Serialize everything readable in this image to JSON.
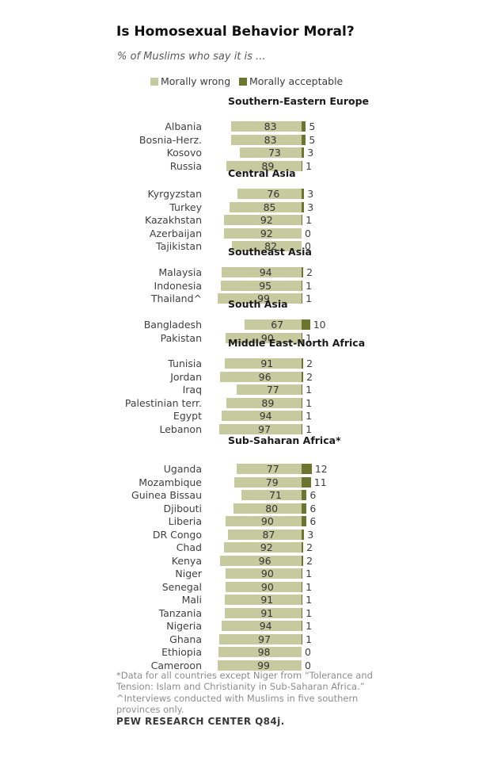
{
  "title": "Is Homosexual Behavior Moral?",
  "subtitle": "% of Muslims who say it is ...",
  "footnotes": [
    "*Data for all countries except Niger from “Tolerance and Tension: Islam and Christianity in Sub-Saharan Africa.”",
    "^Interviews conducted with Muslims in five southern provinces only."
  ],
  "source": "PEW RESEARCH CENTER Q84j.",
  "chart_data": {
    "type": "bar",
    "orientation": "horizontal",
    "stacked": true,
    "unit": "%",
    "xlim": [
      0,
      100
    ],
    "value_labels": "shown",
    "legend_position": "top",
    "legend": [
      {
        "name": "Morally wrong",
        "color": "#c6ca9f"
      },
      {
        "name": "Morally acceptable",
        "color": "#6c7530"
      }
    ],
    "groups": [
      {
        "region": "Southern-Eastern Europe",
        "rows": [
          {
            "country": "Albania",
            "wrong": 83,
            "acceptable": 5
          },
          {
            "country": "Bosnia-Herz.",
            "wrong": 83,
            "acceptable": 5
          },
          {
            "country": "Kosovo",
            "wrong": 73,
            "acceptable": 3
          },
          {
            "country": "Russia",
            "wrong": 89,
            "acceptable": 1
          }
        ]
      },
      {
        "region": "Central Asia",
        "rows": [
          {
            "country": "Kyrgyzstan",
            "wrong": 76,
            "acceptable": 3
          },
          {
            "country": "Turkey",
            "wrong": 85,
            "acceptable": 3
          },
          {
            "country": "Kazakhstan",
            "wrong": 92,
            "acceptable": 1
          },
          {
            "country": "Azerbaijan",
            "wrong": 92,
            "acceptable": 0
          },
          {
            "country": "Tajikistan",
            "wrong": 82,
            "acceptable": 0
          }
        ]
      },
      {
        "region": "Southeast Asia",
        "rows": [
          {
            "country": "Malaysia",
            "wrong": 94,
            "acceptable": 2
          },
          {
            "country": "Indonesia",
            "wrong": 95,
            "acceptable": 1
          },
          {
            "country": "Thailand^",
            "wrong": 99,
            "acceptable": 1
          }
        ]
      },
      {
        "region": "South Asia",
        "rows": [
          {
            "country": "Bangladesh",
            "wrong": 67,
            "acceptable": 10
          },
          {
            "country": "Pakistan",
            "wrong": 90,
            "acceptable": 1
          }
        ]
      },
      {
        "region": "Middle East-North Africa",
        "rows": [
          {
            "country": "Tunisia",
            "wrong": 91,
            "acceptable": 2
          },
          {
            "country": "Jordan",
            "wrong": 96,
            "acceptable": 2
          },
          {
            "country": "Iraq",
            "wrong": 77,
            "acceptable": 1
          },
          {
            "country": "Palestinian terr.",
            "wrong": 89,
            "acceptable": 1
          },
          {
            "country": "Egypt",
            "wrong": 94,
            "acceptable": 1
          },
          {
            "country": "Lebanon",
            "wrong": 97,
            "acceptable": 1
          }
        ]
      },
      {
        "region": "Sub-Saharan Africa*",
        "rows": [
          {
            "country": "Uganda",
            "wrong": 77,
            "acceptable": 12
          },
          {
            "country": "Mozambique",
            "wrong": 79,
            "acceptable": 11
          },
          {
            "country": "Guinea Bissau",
            "wrong": 71,
            "acceptable": 6
          },
          {
            "country": "Djibouti",
            "wrong": 80,
            "acceptable": 6
          },
          {
            "country": "Liberia",
            "wrong": 90,
            "acceptable": 6
          },
          {
            "country": "DR Congo",
            "wrong": 87,
            "acceptable": 3
          },
          {
            "country": "Chad",
            "wrong": 92,
            "acceptable": 2
          },
          {
            "country": "Kenya",
            "wrong": 96,
            "acceptable": 2
          },
          {
            "country": "Niger",
            "wrong": 90,
            "acceptable": 1
          },
          {
            "country": "Senegal",
            "wrong": 90,
            "acceptable": 1
          },
          {
            "country": "Mali",
            "wrong": 91,
            "acceptable": 1
          },
          {
            "country": "Tanzania",
            "wrong": 91,
            "acceptable": 1
          },
          {
            "country": "Nigeria",
            "wrong": 94,
            "acceptable": 1
          },
          {
            "country": "Ghana",
            "wrong": 97,
            "acceptable": 1
          },
          {
            "country": "Ethiopia",
            "wrong": 98,
            "acceptable": 0
          },
          {
            "country": "Cameroon",
            "wrong": 99,
            "acceptable": 0
          }
        ]
      }
    ]
  }
}
